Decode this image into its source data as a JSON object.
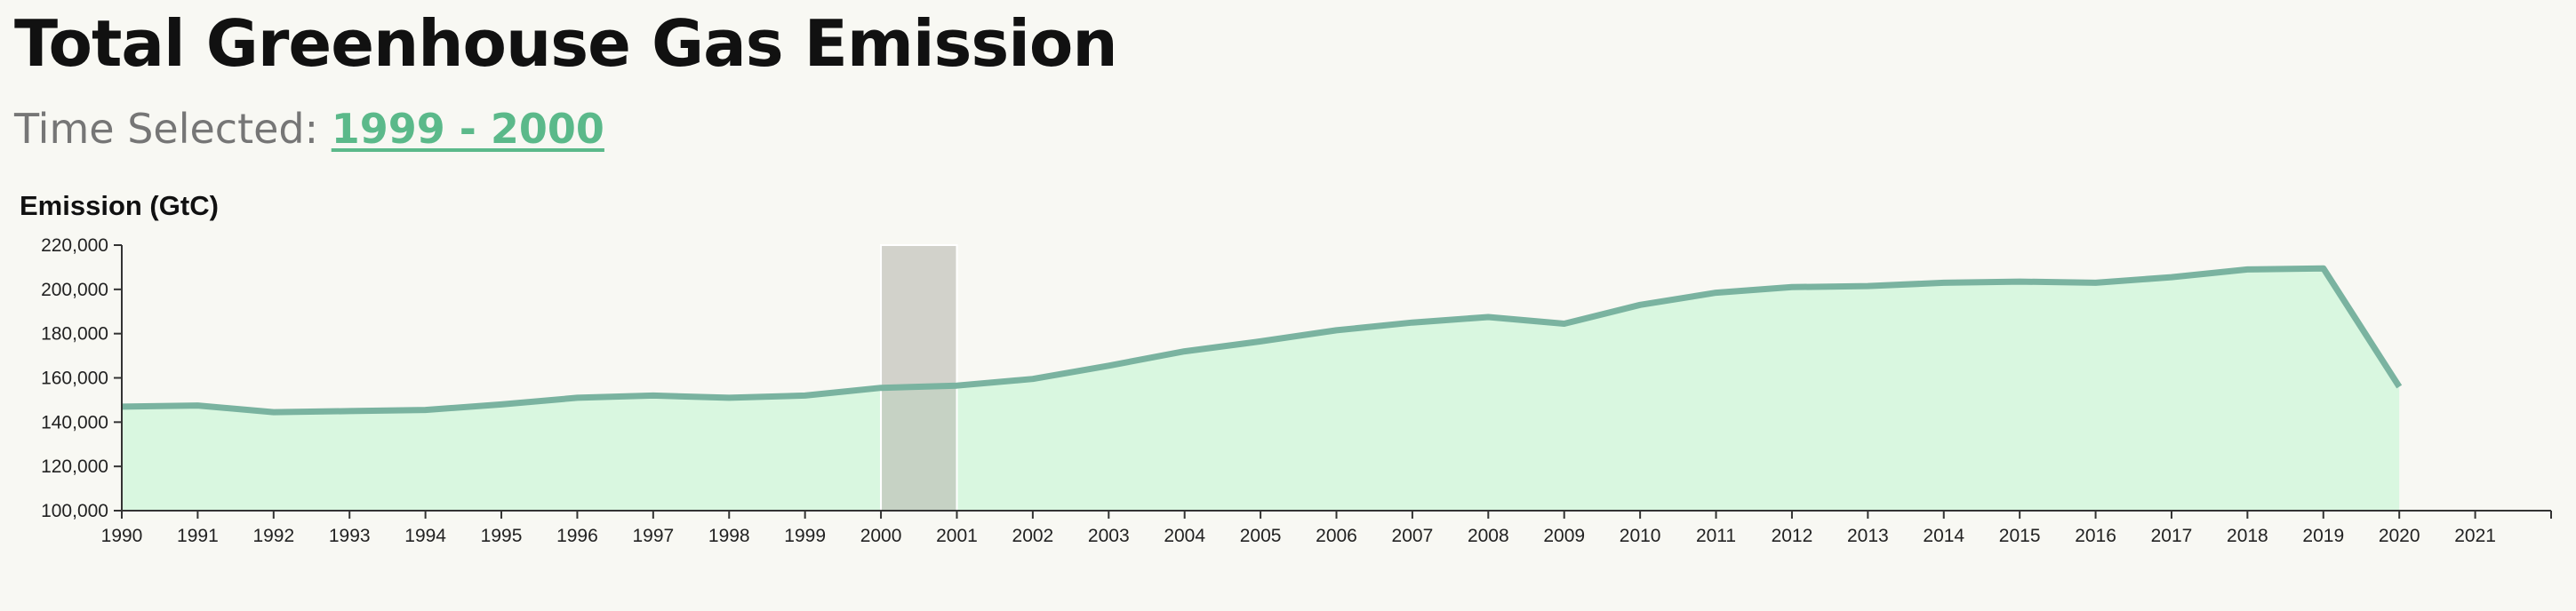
{
  "header": {
    "title": "Total Greenhouse Gas Emission",
    "time_label": "Time Selected:",
    "time_value": "1999 - 2000"
  },
  "colors": {
    "area_fill": "#d9f7e0",
    "line": "#7ab3a0",
    "selection": "#b9b9b1",
    "accent": "#5bb98a"
  },
  "chart_data": {
    "type": "area",
    "title": "",
    "ylabel": "Emission (GtC)",
    "xlabel": "",
    "x_ticks": [
      1990,
      1991,
      1992,
      1993,
      1994,
      1995,
      1996,
      1997,
      1998,
      1999,
      2000,
      2001,
      2002,
      2003,
      2004,
      2005,
      2006,
      2007,
      2008,
      2009,
      2010,
      2011,
      2012,
      2013,
      2014,
      2015,
      2016,
      2017,
      2018,
      2019,
      2020,
      2021
    ],
    "xlim": [
      1990,
      2022
    ],
    "y_ticks": [
      100000,
      120000,
      140000,
      160000,
      180000,
      200000,
      220000
    ],
    "ylim": [
      100000,
      220000
    ],
    "x": [
      1990,
      1991,
      1992,
      1993,
      1994,
      1995,
      1996,
      1997,
      1998,
      1999,
      2000,
      2001,
      2002,
      2003,
      2004,
      2005,
      2006,
      2007,
      2008,
      2009,
      2010,
      2011,
      2012,
      2013,
      2014,
      2015,
      2016,
      2017,
      2018,
      2019,
      2020
    ],
    "values": [
      147000,
      147500,
      144500,
      145000,
      145500,
      148000,
      151000,
      152000,
      151000,
      152000,
      155500,
      156500,
      159500,
      165500,
      172000,
      176500,
      181500,
      185000,
      187500,
      184500,
      193000,
      198500,
      201000,
      201500,
      203000,
      203500,
      203000,
      205500,
      209000,
      209500,
      156000
    ],
    "selection": [
      2000,
      2001
    ],
    "grid": false,
    "legend": "none"
  }
}
